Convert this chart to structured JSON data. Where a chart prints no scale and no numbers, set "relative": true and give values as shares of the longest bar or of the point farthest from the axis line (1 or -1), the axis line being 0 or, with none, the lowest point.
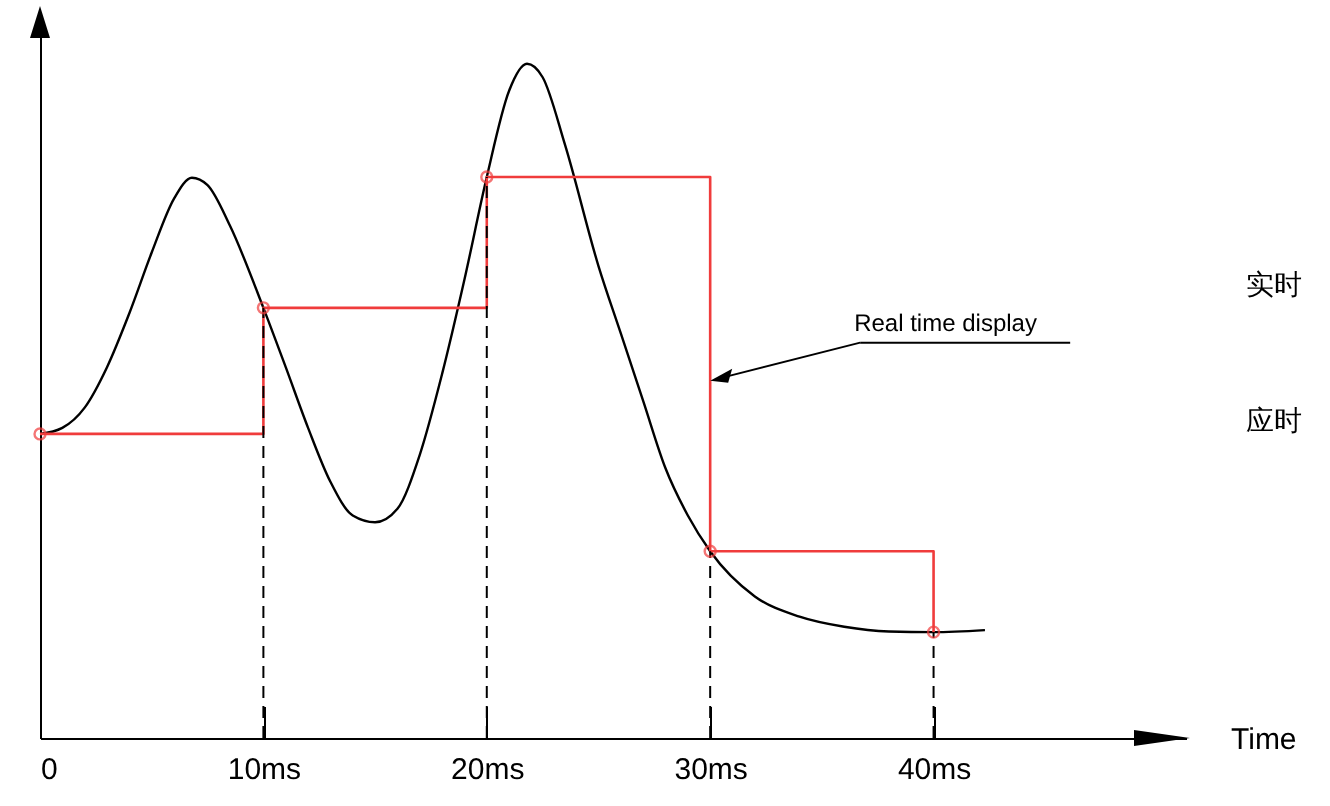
{
  "chart_data": {
    "type": "line",
    "relative": true,
    "xlabel": "Time",
    "xlim": [
      0,
      51.3
    ],
    "xticks": [
      0,
      {
        "value": 10,
        "label": "10ms"
      },
      {
        "value": 20,
        "label": "20ms"
      },
      {
        "value": 30,
        "label": "30ms"
      },
      {
        "value": 40,
        "label": "40ms"
      }
    ],
    "series": [
      {
        "color": "#000000",
        "marker": "none",
        "x": [
          0,
          1,
          2,
          3,
          4,
          5,
          6,
          6.8,
          7.5,
          8.5,
          10,
          11,
          12,
          13,
          14,
          15,
          16,
          17,
          18,
          19,
          20,
          21,
          21.8,
          22.5,
          23.5,
          25,
          26,
          27,
          28,
          29,
          30,
          32,
          34,
          36,
          38,
          40,
          42.3
        ],
        "values": [
          0.451,
          0.46,
          0.49,
          0.55,
          0.63,
          0.72,
          0.8,
          0.831,
          0.82,
          0.76,
          0.638,
          0.55,
          0.46,
          0.38,
          0.33,
          0.32,
          0.34,
          0.42,
          0.54,
          0.68,
          0.832,
          0.96,
          1,
          0.98,
          0.88,
          0.7,
          0.6,
          0.5,
          0.4,
          0.33,
          0.277,
          0.21,
          0.18,
          0.165,
          0.158,
          0.157,
          0.16
        ]
      },
      {
        "type": "step",
        "color": "#f03c3c",
        "marker": "circle",
        "x": [
          0,
          10,
          20,
          30,
          40
        ],
        "values": [
          0.451,
          0.638,
          0.832,
          0.277,
          0.157
        ]
      }
    ],
    "ref_lines": [
      {
        "axis": "x",
        "value": 10,
        "line_style": "dashed"
      },
      {
        "axis": "x",
        "value": 20,
        "line_style": "dashed"
      },
      {
        "axis": "x",
        "value": 30,
        "line_style": "dashed"
      },
      {
        "axis": "x",
        "value": 40,
        "line_style": "dashed"
      }
    ],
    "annotations": [
      {
        "text": "Real time display",
        "x": 30,
        "y": 0.53
      },
      "实时",
      "应时"
    ],
    "grid": false
  }
}
